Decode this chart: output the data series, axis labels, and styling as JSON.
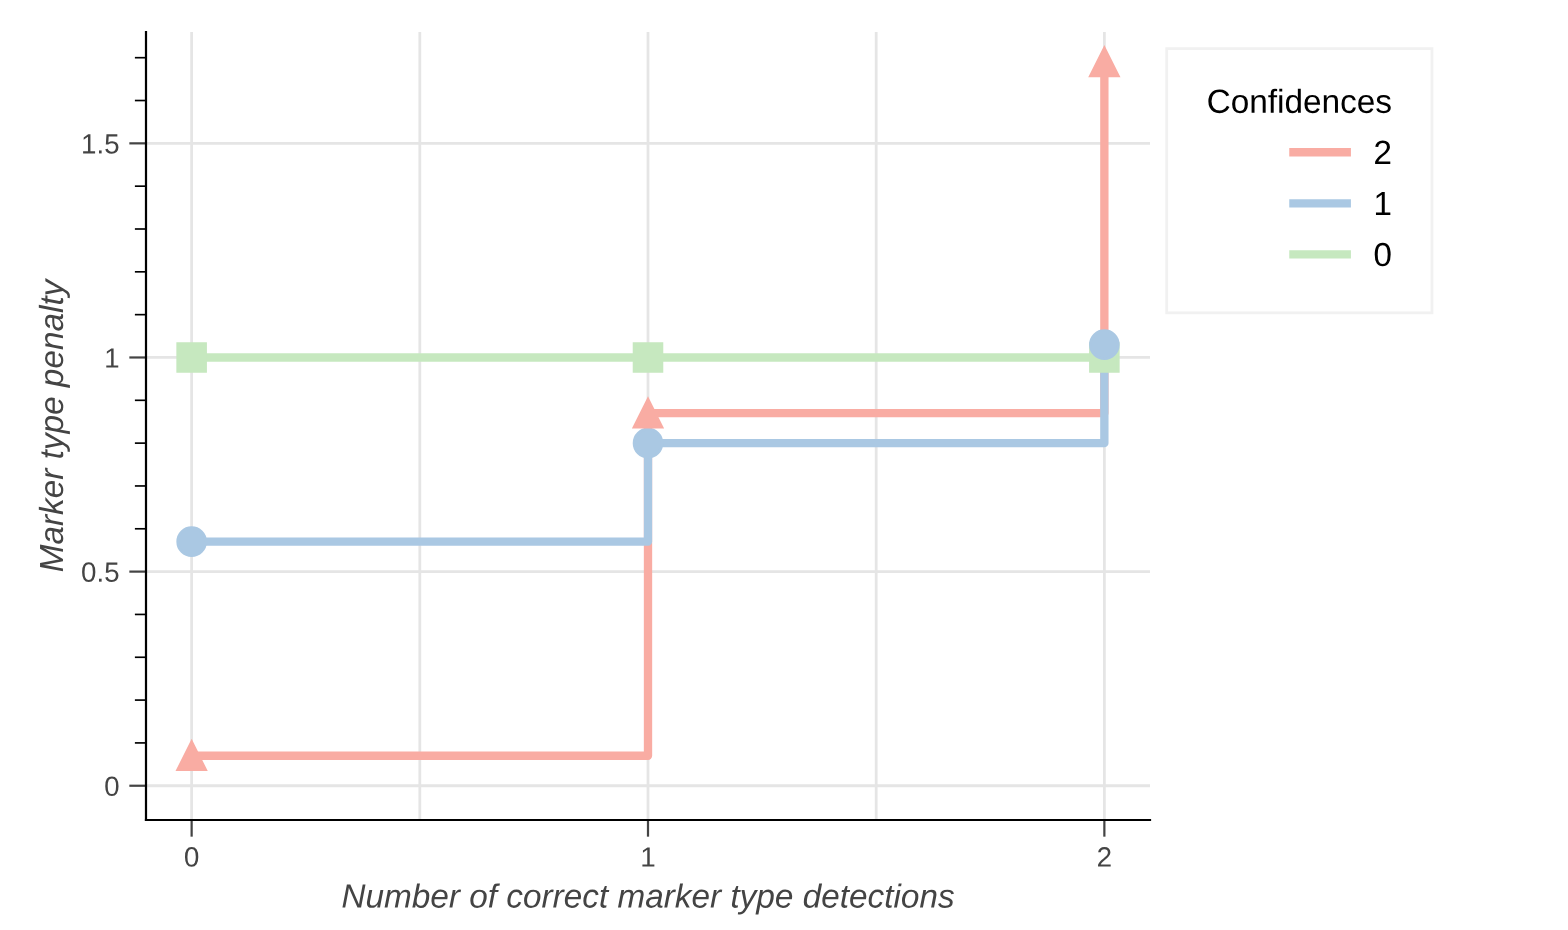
{
  "chart_data": {
    "type": "step",
    "xlabel": "Number of correct marker type detections",
    "ylabel": "Marker type penalty",
    "legend_title": "Confidences",
    "x": [
      0,
      1,
      2
    ],
    "series": [
      {
        "name": "2",
        "color": "#f9aca3",
        "marker": "triangle",
        "values": [
          0.07,
          0.87,
          1.69
        ]
      },
      {
        "name": "1",
        "color": "#aac8e3",
        "marker": "circle",
        "values": [
          0.57,
          0.8,
          1.03
        ]
      },
      {
        "name": "0",
        "color": "#c6e8bf",
        "marker": "square",
        "values": [
          1,
          1,
          1
        ]
      }
    ],
    "xlim": [
      -0.1,
      2.1
    ],
    "ylim": [
      -0.08,
      1.76
    ],
    "xticks": [
      0,
      {
        "value": 0.5,
        "label": null
      },
      1,
      {
        "value": 1.5,
        "label": null
      },
      2
    ],
    "yticks": [
      0,
      0.5,
      1,
      1.5
    ],
    "grid": true,
    "legend": "top right",
    "line_style": "solid"
  }
}
